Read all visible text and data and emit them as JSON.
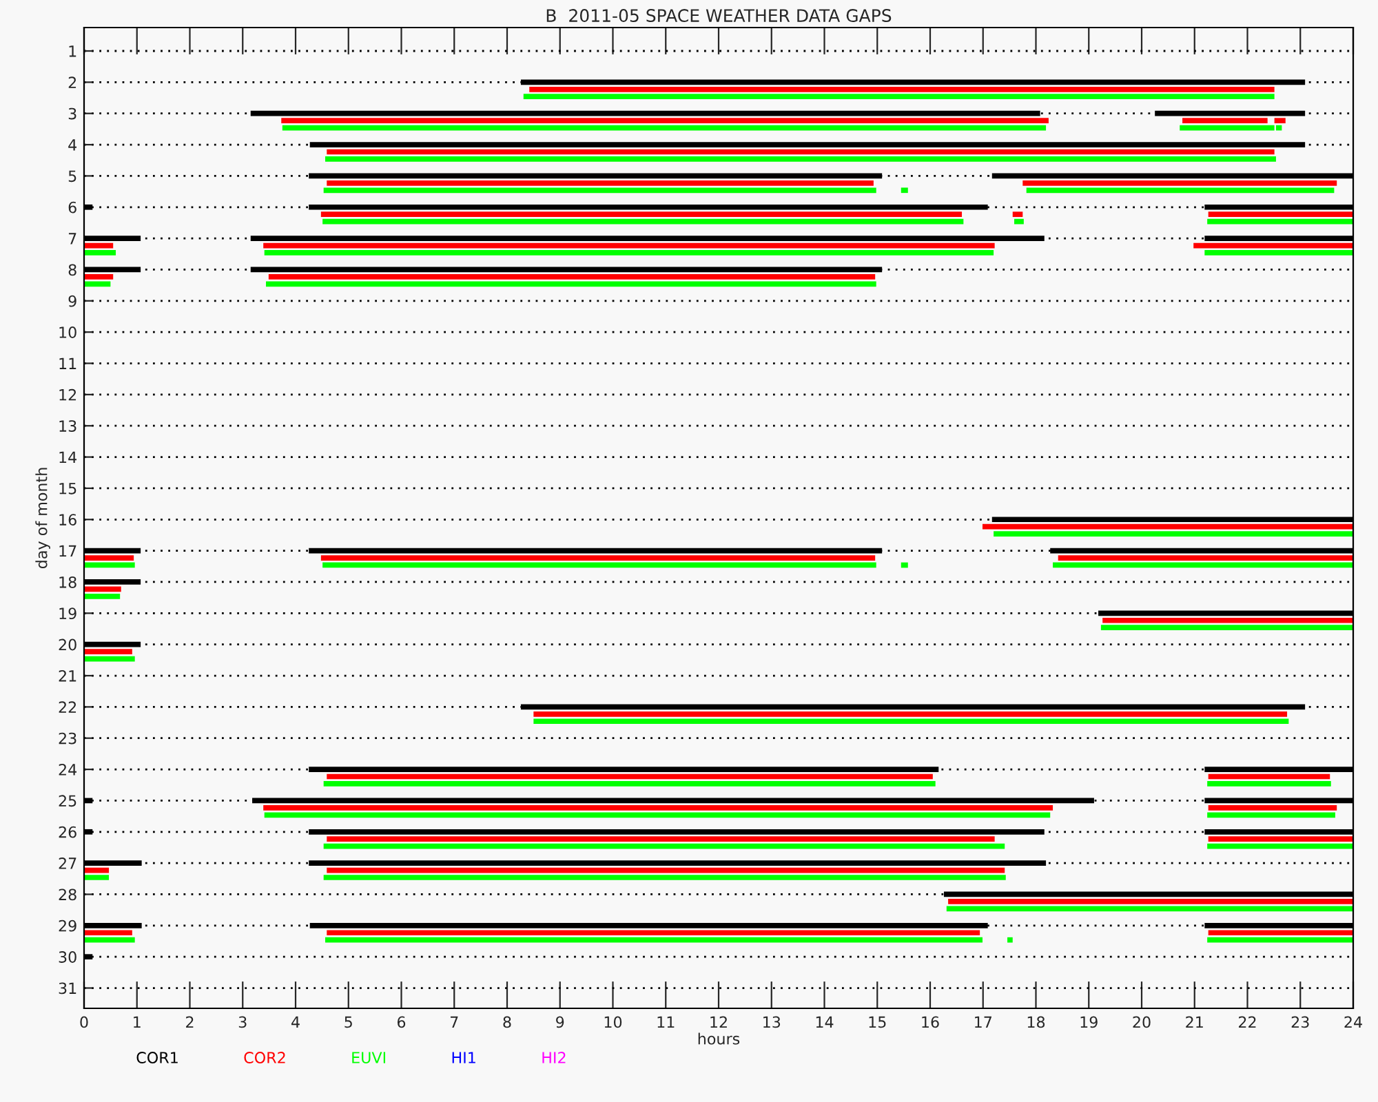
{
  "chart_data": {
    "type": "bar",
    "orientation": "horizontal",
    "title": "B  2011-05 SPACE WEATHER DATA GAPS",
    "xlabel": "hours",
    "ylabel": "day of month",
    "categories": [
      "1",
      "2",
      "3",
      "4",
      "5",
      "6",
      "7",
      "8",
      "9",
      "10",
      "11",
      "12",
      "13",
      "14",
      "15",
      "16",
      "17",
      "18",
      "19",
      "20",
      "21",
      "22",
      "23",
      "24",
      "25",
      "26",
      "27",
      "28",
      "29",
      "30",
      "31"
    ],
    "xlim": [
      0,
      24
    ],
    "xticks": [
      0,
      1,
      2,
      3,
      4,
      5,
      6,
      7,
      8,
      9,
      10,
      11,
      12,
      13,
      14,
      15,
      16,
      17,
      18,
      19,
      20,
      21,
      22,
      23,
      24
    ],
    "grid": "y",
    "legend": "bottom",
    "series": [
      {
        "name": "COR1",
        "color": "#000000",
        "base": [
          null,
          8.26,
          3.15,
          4.27,
          4.25,
          0,
          0,
          0,
          null,
          null,
          null,
          null,
          null,
          null,
          null,
          17.17,
          0,
          0,
          19.18,
          0,
          null,
          8.26,
          null,
          4.25,
          0,
          0,
          0,
          16.26,
          0,
          0,
          null
        ],
        "values": [
          null,
          14.83,
          14.93,
          18.82,
          10.84,
          0.16,
          1.07,
          1.07,
          null,
          null,
          null,
          null,
          null,
          null,
          null,
          6.83,
          1.07,
          1.07,
          4.82,
          1.07,
          null,
          14.83,
          null,
          11.91,
          0.16,
          0.16,
          1.09,
          7.74,
          1.09,
          0.16,
          null
        ]
      },
      {
        "color": "#000000",
        "base": [
          null,
          null,
          20.25,
          null,
          17.17,
          4.25,
          3.15,
          3.15,
          null,
          null,
          null,
          null,
          null,
          null,
          null,
          null,
          4.25,
          null,
          null,
          null,
          null,
          null,
          null,
          21.19,
          3.18,
          4.25,
          4.25,
          null,
          4.27,
          null,
          null
        ],
        "values": [
          null,
          null,
          2.84,
          null,
          6.83,
          12.84,
          15.01,
          11.94,
          null,
          null,
          null,
          null,
          null,
          null,
          null,
          null,
          10.84,
          null,
          null,
          null,
          null,
          null,
          null,
          2.81,
          15.92,
          13.91,
          13.94,
          null,
          12.82,
          null,
          null
        ]
      },
      {
        "color": "#000000",
        "base": [
          null,
          null,
          null,
          null,
          null,
          21.19,
          21.19,
          null,
          null,
          null,
          null,
          null,
          null,
          null,
          null,
          null,
          18.27,
          null,
          null,
          null,
          null,
          null,
          null,
          null,
          21.19,
          21.19,
          null,
          null,
          21.19,
          null,
          null
        ],
        "values": [
          null,
          null,
          null,
          null,
          null,
          2.81,
          2.81,
          null,
          null,
          null,
          null,
          null,
          null,
          null,
          null,
          null,
          5.73,
          null,
          null,
          null,
          null,
          null,
          null,
          null,
          2.81,
          2.81,
          null,
          null,
          2.81,
          null,
          null
        ]
      },
      {
        "name": "COR2",
        "color": "#ff0000",
        "base": [
          null,
          8.42,
          3.73,
          4.59,
          4.59,
          4.48,
          0,
          0,
          null,
          null,
          null,
          null,
          null,
          null,
          null,
          16.99,
          0,
          0,
          19.26,
          0,
          null,
          8.5,
          null,
          4.59,
          3.39,
          4.59,
          0,
          16.34,
          0,
          null,
          null
        ],
        "values": [
          null,
          14.09,
          14.51,
          17.92,
          10.34,
          12.12,
          0.55,
          0.55,
          null,
          null,
          null,
          null,
          null,
          null,
          null,
          7.01,
          0.94,
          0.7,
          4.74,
          0.91,
          null,
          14.25,
          null,
          11.46,
          14.93,
          12.63,
          0.47,
          7.66,
          0.91,
          null,
          null
        ]
      },
      {
        "color": "#ff0000",
        "base": [
          null,
          null,
          20.77,
          null,
          17.75,
          17.56,
          3.39,
          3.49,
          null,
          null,
          null,
          null,
          null,
          null,
          null,
          null,
          4.48,
          null,
          null,
          null,
          null,
          null,
          null,
          21.26,
          21.26,
          21.26,
          4.59,
          null,
          4.59,
          null,
          null
        ],
        "values": [
          null,
          null,
          1.61,
          null,
          5.94,
          0.19,
          13.83,
          11.47,
          null,
          null,
          null,
          null,
          null,
          null,
          null,
          null,
          10.48,
          null,
          null,
          null,
          null,
          null,
          null,
          2.3,
          2.43,
          2.74,
          12.82,
          null,
          12.35,
          null,
          null
        ]
      },
      {
        "color": "#ff0000",
        "base": [
          null,
          null,
          22.51,
          null,
          null,
          21.26,
          20.98,
          null,
          null,
          null,
          null,
          null,
          null,
          null,
          null,
          null,
          18.42,
          null,
          null,
          null,
          null,
          null,
          null,
          null,
          null,
          null,
          null,
          null,
          21.26,
          null,
          null
        ],
        "values": [
          null,
          null,
          0.21,
          null,
          null,
          2.74,
          3.02,
          null,
          null,
          null,
          null,
          null,
          null,
          null,
          null,
          null,
          5.58,
          null,
          null,
          null,
          null,
          null,
          null,
          null,
          null,
          null,
          null,
          null,
          2.74,
          null,
          null
        ]
      },
      {
        "name": "EUVI",
        "color": "#00ff00",
        "base": [
          null,
          8.31,
          3.75,
          4.56,
          4.53,
          4.51,
          0,
          0,
          null,
          null,
          null,
          null,
          null,
          null,
          null,
          17.2,
          0,
          0,
          19.23,
          0,
          null,
          8.5,
          null,
          4.53,
          3.41,
          4.53,
          0,
          16.31,
          0,
          null,
          null
        ],
        "values": [
          null,
          14.2,
          14.44,
          17.98,
          10.45,
          12.12,
          0.6,
          0.5,
          null,
          null,
          null,
          null,
          null,
          null,
          null,
          6.8,
          0.96,
          0.68,
          4.77,
          0.96,
          null,
          14.28,
          null,
          11.57,
          14.86,
          12.88,
          0.47,
          7.69,
          0.96,
          null,
          null
        ]
      },
      {
        "color": "#00ff00",
        "base": [
          null,
          null,
          20.72,
          null,
          15.45,
          17.59,
          3.41,
          3.44,
          null,
          null,
          null,
          null,
          null,
          null,
          null,
          null,
          4.51,
          null,
          null,
          null,
          null,
          null,
          null,
          21.24,
          21.24,
          21.24,
          4.53,
          null,
          4.56,
          null,
          null
        ],
        "values": [
          null,
          null,
          1.79,
          null,
          0.13,
          0.18,
          13.79,
          11.54,
          null,
          null,
          null,
          null,
          null,
          null,
          null,
          null,
          10.47,
          null,
          null,
          null,
          null,
          null,
          null,
          2.34,
          2.42,
          2.76,
          12.9,
          null,
          12.43,
          null,
          null
        ]
      },
      {
        "color": "#00ff00",
        "base": [
          null,
          null,
          22.54,
          null,
          17.82,
          21.24,
          21.19,
          null,
          null,
          null,
          null,
          null,
          null,
          null,
          null,
          null,
          15.45,
          null,
          null,
          null,
          null,
          null,
          null,
          null,
          null,
          null,
          null,
          null,
          17.46,
          null,
          null
        ],
        "values": [
          null,
          null,
          0.11,
          null,
          5.82,
          2.76,
          2.81,
          null,
          null,
          null,
          null,
          null,
          null,
          null,
          null,
          null,
          0.13,
          null,
          null,
          null,
          null,
          null,
          null,
          null,
          null,
          null,
          null,
          null,
          0.1,
          null,
          null
        ]
      },
      {
        "color": "#00ff00",
        "base": [
          null,
          null,
          null,
          null,
          null,
          null,
          null,
          null,
          null,
          null,
          null,
          null,
          null,
          null,
          null,
          null,
          18.32,
          null,
          null,
          null,
          null,
          null,
          null,
          null,
          null,
          null,
          null,
          null,
          21.24,
          null,
          null
        ],
        "values": [
          null,
          null,
          null,
          null,
          null,
          null,
          null,
          null,
          null,
          null,
          null,
          null,
          null,
          null,
          null,
          null,
          5.68,
          null,
          null,
          null,
          null,
          null,
          null,
          null,
          null,
          null,
          null,
          null,
          2.76,
          null,
          null
        ]
      },
      {
        "name": "HI1",
        "color": "#0000ff",
        "values": [
          null,
          null,
          null,
          null,
          null,
          null,
          null,
          null,
          null,
          null,
          null,
          null,
          null,
          null,
          null,
          null,
          null,
          null,
          null,
          null,
          null,
          null,
          null,
          null,
          null,
          null,
          null,
          null,
          null,
          null,
          null
        ]
      },
      {
        "name": "HI2",
        "color": "#ff00ff",
        "values": [
          null,
          null,
          null,
          null,
          null,
          null,
          null,
          null,
          null,
          null,
          null,
          null,
          null,
          null,
          null,
          null,
          null,
          null,
          null,
          null,
          null,
          null,
          null,
          null,
          null,
          null,
          null,
          null,
          null,
          null,
          null
        ]
      }
    ]
  }
}
